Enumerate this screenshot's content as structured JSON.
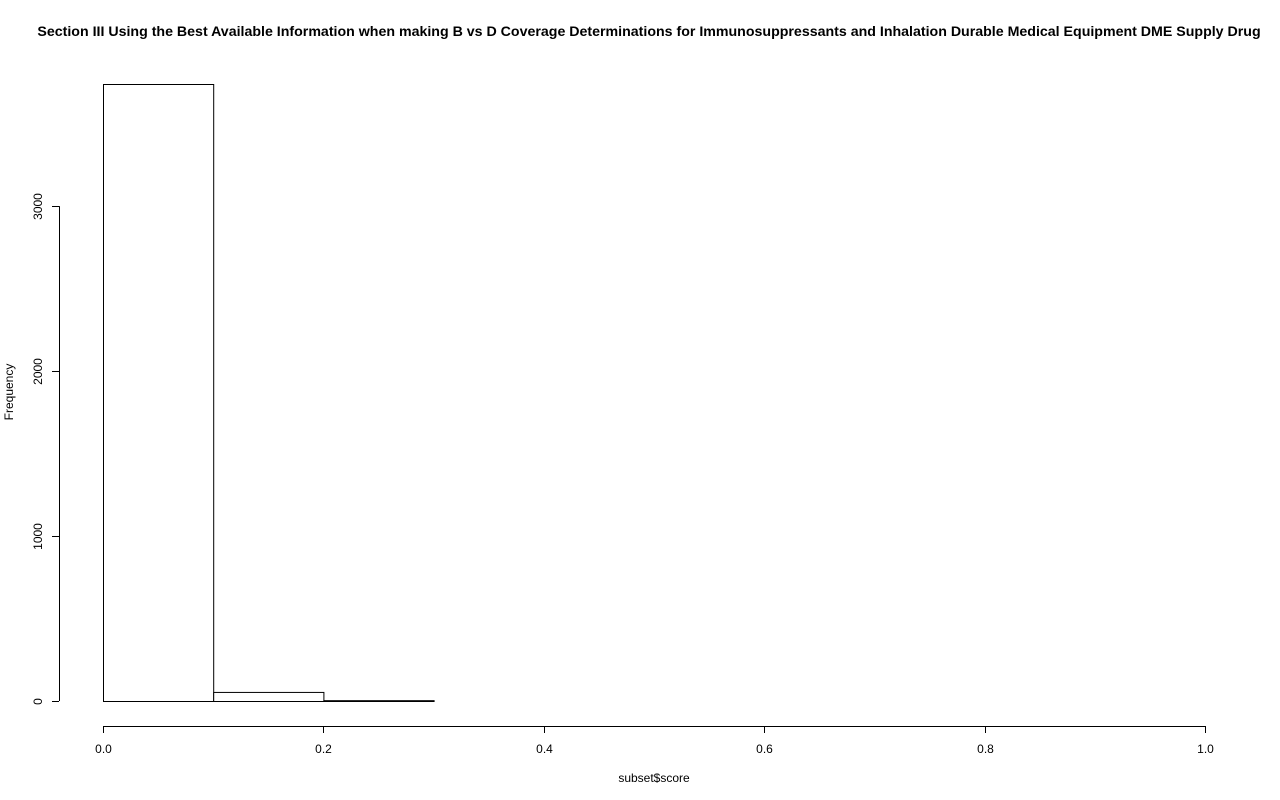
{
  "chart_data": {
    "type": "bar",
    "histogram": true,
    "title": "Section III Using the Best Available Information when making B vs D Coverage Determinations for Immunosuppressants and Inhalation Durable Medical Equipment DME Supply Drug",
    "xlabel": "subset$score",
    "ylabel": "Frequency",
    "bins": [
      {
        "x0": 0.0,
        "x1": 0.1,
        "count": 3740
      },
      {
        "x0": 0.1,
        "x1": 0.2,
        "count": 55
      },
      {
        "x0": 0.2,
        "x1": 0.3,
        "count": 5
      },
      {
        "x0": 0.3,
        "x1": 0.4,
        "count": 0
      },
      {
        "x0": 0.4,
        "x1": 0.5,
        "count": 0
      },
      {
        "x0": 0.5,
        "x1": 0.6,
        "count": 0
      },
      {
        "x0": 0.6,
        "x1": 0.7,
        "count": 0
      },
      {
        "x0": 0.7,
        "x1": 0.8,
        "count": 0
      },
      {
        "x0": 0.8,
        "x1": 0.9,
        "count": 0
      },
      {
        "x0": 0.9,
        "x1": 1.0,
        "count": 0
      }
    ],
    "xlim": [
      0,
      1
    ],
    "ylim": [
      0,
      3740
    ],
    "x_ticks": [
      {
        "value": 0.0,
        "label": "0.0"
      },
      {
        "value": 0.2,
        "label": "0.2"
      },
      {
        "value": 0.4,
        "label": "0.4"
      },
      {
        "value": 0.6,
        "label": "0.6"
      },
      {
        "value": 0.8,
        "label": "0.8"
      },
      {
        "value": 1.0,
        "label": "1.0"
      }
    ],
    "y_ticks": [
      {
        "value": 0,
        "label": "0"
      },
      {
        "value": 1000,
        "label": "1000"
      },
      {
        "value": 2000,
        "label": "2000"
      },
      {
        "value": 3000,
        "label": "3000"
      }
    ],
    "grid": false,
    "legend": "none",
    "bar_fill": "#ffffff",
    "bar_stroke": "#000000"
  }
}
